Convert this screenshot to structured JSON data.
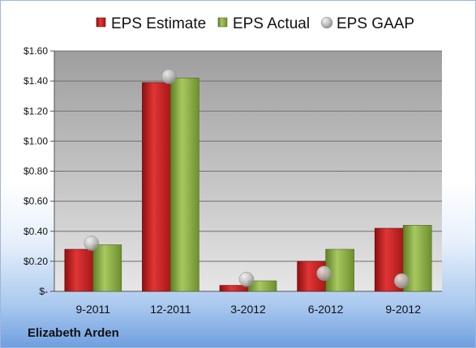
{
  "company": "Elizabeth Arden",
  "chart_data": {
    "type": "bar",
    "categories": [
      "9-2011",
      "12-2011",
      "3-2012",
      "6-2012",
      "9-2012"
    ],
    "series": [
      {
        "name": "EPS Estimate",
        "type": "bar",
        "color": "#cc2222",
        "values": [
          0.28,
          1.39,
          0.04,
          0.2,
          0.42
        ]
      },
      {
        "name": "EPS Actual",
        "type": "bar",
        "color": "#8db046",
        "values": [
          0.31,
          1.42,
          0.07,
          0.28,
          0.44
        ]
      },
      {
        "name": "EPS GAAP",
        "type": "marker",
        "color": "#b8b8b8",
        "values": [
          0.32,
          1.43,
          0.08,
          0.12,
          0.07
        ]
      }
    ],
    "ylim": [
      0,
      1.6
    ],
    "yticks": [
      {
        "value": 0,
        "label": "$-"
      },
      {
        "value": 0.2,
        "label": "$0.20"
      },
      {
        "value": 0.4,
        "label": "$0.40"
      },
      {
        "value": 0.6,
        "label": "$0.60"
      },
      {
        "value": 0.8,
        "label": "$0.80"
      },
      {
        "value": 1.0,
        "label": "$1.00"
      },
      {
        "value": 1.2,
        "label": "$1.20"
      },
      {
        "value": 1.4,
        "label": "$1.40"
      },
      {
        "value": 1.6,
        "label": "$1.60"
      }
    ],
    "grid": true,
    "legend_position": "top"
  }
}
